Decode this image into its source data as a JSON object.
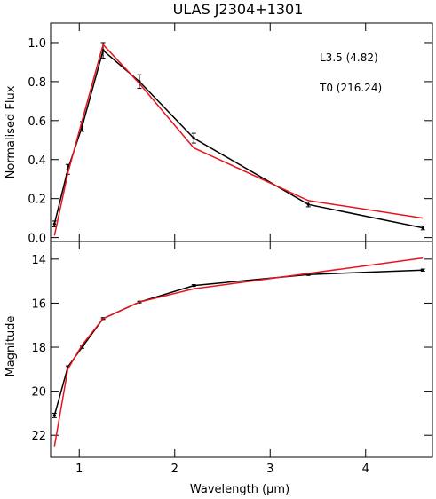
{
  "chart_data": [
    {
      "type": "line",
      "title": "ULAS J2304+1301",
      "xlabel": "",
      "ylabel": "Normalised Flux",
      "xlim": [
        0.7,
        4.7
      ],
      "ylim": [
        -0.02,
        1.1
      ],
      "xticks": [
        1,
        2,
        3,
        4
      ],
      "yticks": [
        0.0,
        0.2,
        0.4,
        0.6,
        0.8,
        1.0
      ],
      "ytick_labels": [
        "0.0",
        "0.2",
        "0.4",
        "0.6",
        "0.8",
        "1.0"
      ],
      "legend_position": "top-right",
      "series": [
        {
          "name": "L3.5 (4.82)",
          "color": "#000000",
          "x": [
            0.74,
            0.88,
            1.03,
            1.25,
            1.63,
            2.2,
            3.4,
            4.6
          ],
          "y": [
            0.07,
            0.35,
            0.57,
            0.96,
            0.8,
            0.51,
            0.17,
            0.05
          ],
          "yerr": [
            0.015,
            0.025,
            0.025,
            0.04,
            0.035,
            0.025,
            0.012,
            0.01
          ]
        },
        {
          "name": "T0 (216.24)",
          "color": "#e8141c",
          "x": [
            0.74,
            0.88,
            1.03,
            1.25,
            1.63,
            2.2,
            3.4,
            4.6
          ],
          "y": [
            0.01,
            0.33,
            0.6,
            0.99,
            0.79,
            0.46,
            0.19,
            0.1
          ]
        }
      ]
    },
    {
      "type": "line",
      "title": "",
      "xlabel": "Wavelength (μm)",
      "ylabel": "Magnitude",
      "xlim": [
        0.7,
        4.7
      ],
      "ylim": [
        23.0,
        13.2
      ],
      "y_inverted": true,
      "xticks": [
        1,
        2,
        3,
        4
      ],
      "yticks": [
        14,
        16,
        18,
        20,
        22
      ],
      "series": [
        {
          "name": "",
          "color": "#000000",
          "x": [
            0.74,
            0.88,
            1.03,
            1.25,
            1.63,
            2.2,
            3.4,
            4.6
          ],
          "y": [
            21.1,
            18.9,
            18.0,
            16.7,
            15.95,
            15.2,
            14.7,
            14.5
          ],
          "yerr": [
            0.1,
            0.05,
            0.05,
            0.04,
            0.04,
            0.04,
            0.04,
            0.05
          ]
        },
        {
          "name": "",
          "color": "#e8141c",
          "x": [
            0.74,
            0.88,
            1.03,
            1.25,
            1.63,
            2.2,
            3.4,
            4.6
          ],
          "y": [
            22.5,
            19.0,
            17.9,
            16.7,
            15.95,
            15.35,
            14.65,
            13.95
          ]
        }
      ]
    }
  ]
}
